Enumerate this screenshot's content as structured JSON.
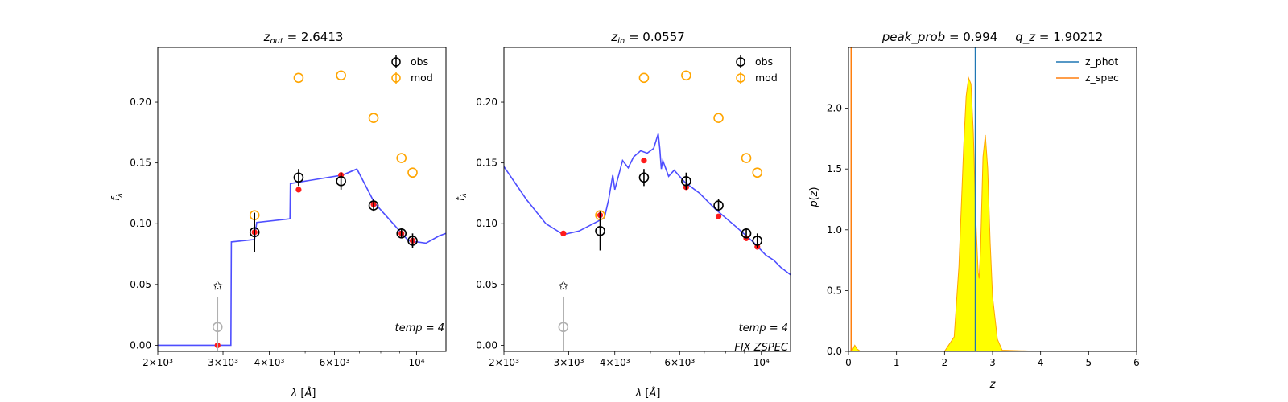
{
  "chart_data": [
    {
      "type": "scatter",
      "title": "z_out = 2.6413",
      "xlabel": "λ [Å]",
      "ylabel": "f_λ",
      "x_scale": "log",
      "xlim": [
        2000,
        12000
      ],
      "ylim": [
        -0.005,
        0.245
      ],
      "x_tick_labels": [
        "2×10³",
        "3×10³",
        "4×10³",
        "6×10³",
        "10⁴"
      ],
      "y_tick_labels": [
        "0.00",
        "0.05",
        "0.10",
        "0.15",
        "0.20"
      ],
      "legend": {
        "position": "top-right",
        "entries": [
          "obs",
          "mod"
        ]
      },
      "annotations": [
        "temp = 4"
      ],
      "series": [
        {
          "name": "obs",
          "color": "#000000",
          "x": [
            2900,
            3650,
            4800,
            6250,
            7650,
            9100,
            9750
          ],
          "y": [
            0.015,
            0.093,
            0.138,
            0.135,
            0.115,
            0.092,
            0.086
          ],
          "yerr": [
            0.025,
            0.016,
            0.007,
            0.007,
            0.005,
            0.004,
            0.006
          ]
        },
        {
          "name": "mod",
          "color": "#ffa500",
          "x": [
            3650,
            4800,
            6250,
            7650,
            9100,
            9750
          ],
          "y": [
            0.107,
            0.22,
            0.222,
            0.187,
            0.154,
            0.142
          ]
        },
        {
          "name": "upper-limit",
          "color": "#ff8c00",
          "x": [
            2900
          ],
          "y": [
            0.049
          ]
        },
        {
          "name": "model-photometry",
          "color": "#ff1a1a",
          "x": [
            2900,
            3650,
            4800,
            6250,
            7650,
            9100,
            9750
          ],
          "y": [
            0.0,
            0.093,
            0.128,
            0.14,
            0.116,
            0.092,
            0.086
          ]
        },
        {
          "name": "template",
          "color": "#4444ff",
          "x": [
            2000,
            3150,
            3160,
            3650,
            3700,
            4550,
            4560,
            6300,
            6900,
            7700,
            8300,
            9500,
            10600,
            11500,
            12000
          ],
          "y": [
            0.0,
            0.0,
            0.085,
            0.087,
            0.101,
            0.104,
            0.133,
            0.14,
            0.145,
            0.117,
            0.106,
            0.086,
            0.084,
            0.09,
            0.092
          ]
        }
      ]
    },
    {
      "type": "scatter",
      "title": "z_in = 0.0557",
      "xlabel": "λ [Å]",
      "ylabel": "f_λ",
      "x_scale": "log",
      "xlim": [
        2000,
        12000
      ],
      "ylim": [
        -0.005,
        0.245
      ],
      "x_tick_labels": [
        "2×10³",
        "3×10³",
        "4×10³",
        "6×10³",
        "10⁴"
      ],
      "y_tick_labels": [
        "0.00",
        "0.05",
        "0.10",
        "0.15",
        "0.20"
      ],
      "legend": {
        "position": "top-right",
        "entries": [
          "obs",
          "mod"
        ]
      },
      "annotations": [
        "temp = 4",
        "FIX ZSPEC"
      ],
      "series": [
        {
          "name": "obs",
          "color": "#000000",
          "x": [
            2900,
            3650,
            4800,
            6250,
            7650,
            9100,
            9750
          ],
          "y": [
            0.015,
            0.094,
            0.138,
            0.135,
            0.115,
            0.092,
            0.086
          ],
          "yerr": [
            0.025,
            0.016,
            0.007,
            0.007,
            0.005,
            0.004,
            0.006
          ]
        },
        {
          "name": "mod",
          "color": "#ffa500",
          "x": [
            3650,
            4800,
            6250,
            7650,
            9100,
            9750
          ],
          "y": [
            0.107,
            0.22,
            0.222,
            0.187,
            0.154,
            0.142
          ]
        },
        {
          "name": "upper-limit",
          "color": "#ff8c00",
          "x": [
            2900
          ],
          "y": [
            0.049
          ]
        },
        {
          "name": "model-photometry",
          "color": "#ff1a1a",
          "x": [
            2900,
            3650,
            4800,
            6250,
            7650,
            9100,
            9750
          ],
          "y": [
            0.092,
            0.107,
            0.152,
            0.13,
            0.106,
            0.088,
            0.081
          ]
        },
        {
          "name": "template",
          "color": "#4444ff",
          "x": [
            2000,
            2300,
            2600,
            2900,
            3200,
            3600,
            3750,
            3850,
            3950,
            4000,
            4100,
            4200,
            4350,
            4500,
            4700,
            4900,
            5100,
            5250,
            5300,
            5350,
            5400,
            5600,
            5800,
            6200,
            6800,
            7500,
            8500,
            9500,
            10300,
            10800,
            11300,
            12000
          ],
          "y": [
            0.147,
            0.12,
            0.1,
            0.091,
            0.094,
            0.102,
            0.105,
            0.12,
            0.14,
            0.128,
            0.14,
            0.152,
            0.146,
            0.155,
            0.16,
            0.158,
            0.162,
            0.174,
            0.162,
            0.145,
            0.152,
            0.139,
            0.144,
            0.134,
            0.125,
            0.112,
            0.098,
            0.085,
            0.074,
            0.07,
            0.064,
            0.058
          ]
        }
      ]
    },
    {
      "type": "area",
      "title": "peak_prob = 0.994     q_z = 1.90212",
      "xlabel": "z",
      "ylabel": "p(z)",
      "xlim": [
        0,
        6
      ],
      "ylim": [
        0,
        2.5
      ],
      "x_tick_labels": [
        "0",
        "1",
        "2",
        "3",
        "4",
        "5",
        "6"
      ],
      "y_tick_labels": [
        "0.0",
        "0.5",
        "1.0",
        "1.5",
        "2.0"
      ],
      "legend": {
        "position": "top-right",
        "entries": [
          "z_phot",
          "z_spec"
        ]
      },
      "vlines": [
        {
          "name": "z_phot",
          "color": "#1f77b4",
          "x": 2.6413
        },
        {
          "name": "z_spec",
          "color": "#ff7f0e",
          "x": 0.0557
        }
      ],
      "series": [
        {
          "name": "p(z)",
          "color": "#ffff00",
          "edge": "#ffa500",
          "x": [
            0,
            0.08,
            0.13,
            0.18,
            0.25,
            0.4,
            1.0,
            2.0,
            2.2,
            2.3,
            2.4,
            2.45,
            2.5,
            2.55,
            2.6,
            2.65,
            2.7,
            2.72,
            2.75,
            2.8,
            2.85,
            2.9,
            2.95,
            3.0,
            3.1,
            3.2,
            4.0,
            5.0
          ],
          "y": [
            0,
            0.01,
            0.05,
            0.02,
            0,
            0,
            0,
            0,
            0.12,
            0.7,
            1.7,
            2.1,
            2.25,
            2.2,
            1.8,
            1.1,
            0.65,
            0.6,
            0.85,
            1.6,
            1.78,
            1.5,
            0.9,
            0.45,
            0.1,
            0.01,
            0,
            0
          ]
        }
      ]
    }
  ]
}
